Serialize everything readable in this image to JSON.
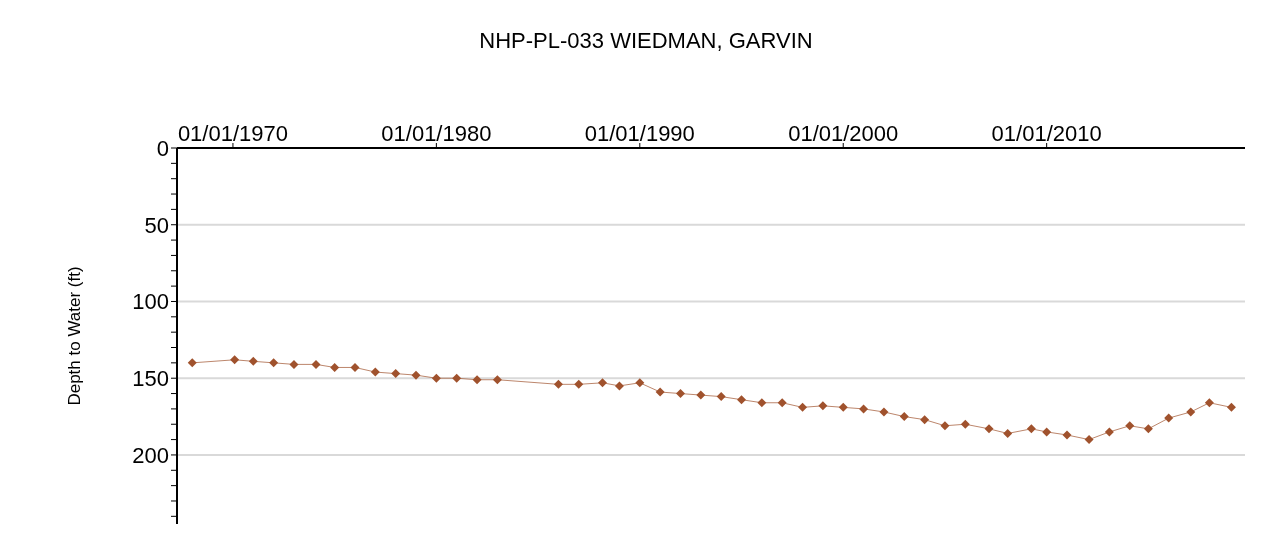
{
  "chart_data": {
    "type": "line",
    "title": "NHP-PL-033 WIEDMAN, GARVIN",
    "ylabel": "Depth to Water (ft)",
    "x": [
      "1968-01",
      "1970-02",
      "1971-01",
      "1972-01",
      "1973-01",
      "1974-02",
      "1975-01",
      "1976-01",
      "1977-01",
      "1978-01",
      "1979-01",
      "1980-01",
      "1981-01",
      "1982-01",
      "1983-01",
      "1986-01",
      "1987-01",
      "1988-03",
      "1989-01",
      "1990-01",
      "1991-01",
      "1992-01",
      "1993-01",
      "1994-01",
      "1995-01",
      "1996-01",
      "1997-01",
      "1998-01",
      "1999-01",
      "2000-01",
      "2001-01",
      "2002-01",
      "2003-01",
      "2004-01",
      "2005-01",
      "2006-01",
      "2007-03",
      "2008-02",
      "2009-04",
      "2010-01",
      "2011-01",
      "2012-02",
      "2013-02",
      "2014-02",
      "2015-01",
      "2016-01",
      "2017-02",
      "2018-01",
      "2019-02"
    ],
    "series": [
      {
        "color": "#a0522d",
        "values": [
          140,
          138,
          139,
          140,
          141,
          141,
          143,
          143,
          146,
          147,
          148,
          150,
          150,
          151,
          151,
          154,
          154,
          153,
          155,
          153,
          159,
          160,
          161,
          162,
          164,
          166,
          166,
          169,
          168,
          169,
          170,
          172,
          175,
          177,
          181,
          180,
          183,
          186,
          183,
          185,
          187,
          190,
          185,
          181,
          183,
          176,
          172,
          166,
          169
        ]
      }
    ],
    "xlim": [
      "1967-04",
      "2019-10"
    ],
    "xticks": [
      {
        "value": "1970-01-01",
        "label": "01/01/1970"
      },
      {
        "value": "1980-01-01",
        "label": "01/01/1980"
      },
      {
        "value": "1990-01-01",
        "label": "01/01/1990"
      },
      {
        "value": "2000-01-01",
        "label": "01/01/2000"
      },
      {
        "value": "2010-01-01",
        "label": "01/01/2010"
      }
    ],
    "ylim": [
      245,
      0
    ],
    "yticks": [
      0,
      {
        "value": 10,
        "label": null
      },
      {
        "value": 20,
        "label": null
      },
      {
        "value": 30,
        "label": null
      },
      {
        "value": 40,
        "label": null
      },
      50,
      {
        "value": 60,
        "label": null
      },
      {
        "value": 70,
        "label": null
      },
      {
        "value": 80,
        "label": null
      },
      {
        "value": 90,
        "label": null
      },
      100,
      {
        "value": 110,
        "label": null
      },
      {
        "value": 120,
        "label": null
      },
      {
        "value": 130,
        "label": null
      },
      {
        "value": 140,
        "label": null
      },
      150,
      {
        "value": 160,
        "label": null
      },
      {
        "value": 170,
        "label": null
      },
      {
        "value": 180,
        "label": null
      },
      {
        "value": 190,
        "label": null
      },
      200,
      {
        "value": 210,
        "label": null
      },
      {
        "value": 220,
        "label": null
      },
      {
        "value": 230,
        "label": null
      },
      {
        "value": 240,
        "label": null
      }
    ],
    "grid": "y",
    "marker": "diamond",
    "line_style": "solid"
  }
}
